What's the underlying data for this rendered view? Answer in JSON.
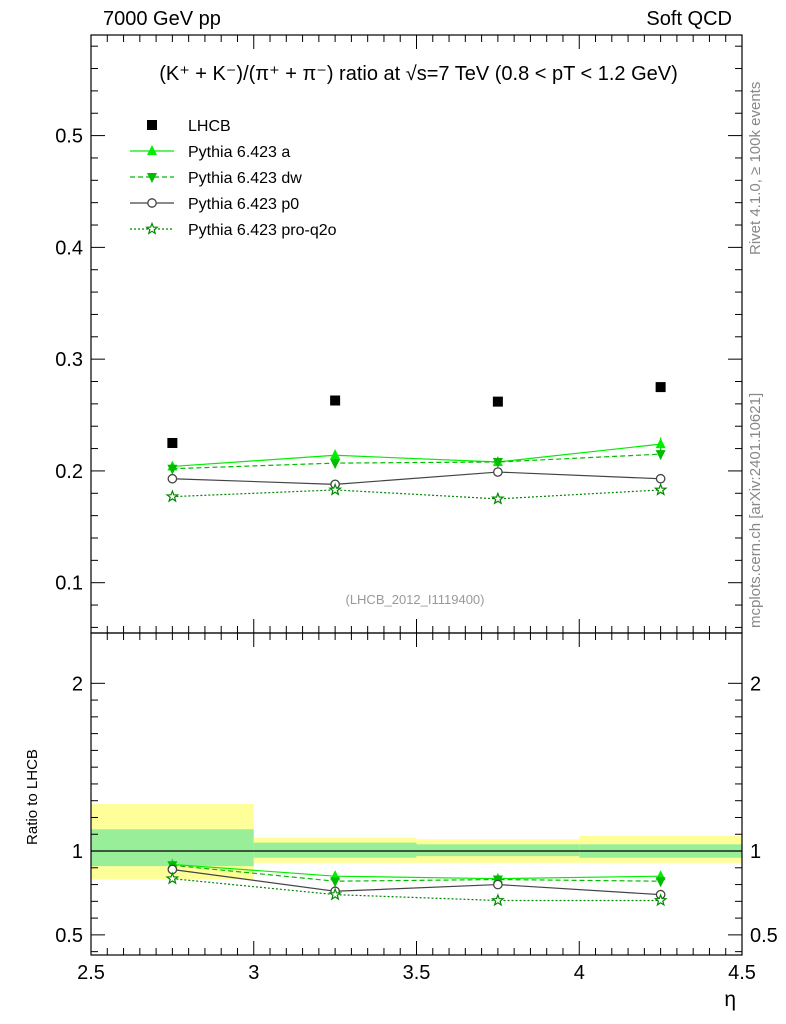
{
  "header": {
    "left": "7000 GeV pp",
    "right": "Soft QCD"
  },
  "side_labels": {
    "rivet": "Rivet 4.1.0, ≥ 100k events",
    "mcplots": "mcplots.cern.ch [arXiv:2401.10621]"
  },
  "chart_data": [
    {
      "type": "scatter",
      "panel": "main",
      "title": "(K⁺ + K⁻)/(π⁺ + π⁻) ratio at √s=7 TeV (0.8 < pT < 1.2 GeV)",
      "watermark": "(LHCB_2012_I1119400)",
      "xlabel": "",
      "ylabel": "",
      "xlim": [
        2.5,
        4.5
      ],
      "ylim": [
        0.055,
        0.59
      ],
      "yticks": [
        "0.1",
        "0.2",
        "0.3",
        "0.4",
        "0.5"
      ],
      "x": [
        2.75,
        3.25,
        3.75,
        4.25
      ],
      "series": [
        {
          "name": "LHCB",
          "marker": "square",
          "color": "#000000",
          "values": [
            0.225,
            0.263,
            0.262,
            0.275
          ]
        },
        {
          "name": "Pythia 6.423 a",
          "marker": "triangle-up",
          "line": "solid",
          "color": "#00ee00",
          "values": [
            0.204,
            0.214,
            0.208,
            0.224
          ],
          "errors": [
            0.004,
            0.005,
            0.004,
            0.006
          ]
        },
        {
          "name": "Pythia 6.423 dw",
          "marker": "triangle-down",
          "line": "dashed",
          "color": "#00bb00",
          "values": [
            0.202,
            0.207,
            0.208,
            0.215
          ],
          "errors": [
            0.004,
            0.004,
            0.004,
            0.004
          ]
        },
        {
          "name": "Pythia 6.423 p0",
          "marker": "circle-open",
          "line": "solid",
          "color": "#444444",
          "values": [
            0.193,
            0.188,
            0.199,
            0.193
          ],
          "errors": [
            0.003,
            0.003,
            0.004,
            0.004
          ]
        },
        {
          "name": "Pythia 6.423 pro-q2o",
          "marker": "star-open",
          "line": "dotted",
          "color": "#008800",
          "values": [
            0.177,
            0.183,
            0.175,
            0.183
          ],
          "errors": [
            0.002,
            0.002,
            0.002,
            0.002
          ]
        }
      ]
    },
    {
      "type": "scatter",
      "panel": "ratio",
      "xlabel": "η",
      "ylabel": "Ratio to LHCB",
      "xlim": [
        2.5,
        4.5
      ],
      "ylim": [
        0.38,
        2.3
      ],
      "xticks": [
        "2.5",
        "3",
        "3.5",
        "4",
        "4.5"
      ],
      "yticks": [
        "0.5",
        "1",
        "2"
      ],
      "bins": [
        [
          2.5,
          3.0
        ],
        [
          3.0,
          3.5
        ],
        [
          3.5,
          4.0
        ],
        [
          4.0,
          4.5
        ]
      ],
      "band_inner": [
        [
          0.91,
          1.13
        ],
        [
          0.96,
          1.05
        ],
        [
          0.97,
          1.04
        ],
        [
          0.96,
          1.04
        ]
      ],
      "band_outer": [
        [
          0.83,
          1.28
        ],
        [
          0.93,
          1.08
        ],
        [
          0.93,
          1.07
        ],
        [
          0.93,
          1.09
        ]
      ],
      "x": [
        2.75,
        3.25,
        3.75,
        4.25
      ],
      "series": [
        {
          "name": "Pythia 6.423 a",
          "values": [
            0.92,
            0.85,
            0.835,
            0.85
          ],
          "errors": [
            0.02,
            0.02,
            0.02,
            0.025
          ]
        },
        {
          "name": "Pythia 6.423 dw",
          "values": [
            0.915,
            0.82,
            0.83,
            0.82
          ],
          "errors": [
            0.02,
            0.02,
            0.02,
            0.02
          ]
        },
        {
          "name": "Pythia 6.423 p0",
          "values": [
            0.89,
            0.76,
            0.8,
            0.74
          ],
          "errors": [
            0.015,
            0.015,
            0.015,
            0.015
          ]
        },
        {
          "name": "Pythia 6.423 pro-q2o",
          "values": [
            0.835,
            0.74,
            0.705,
            0.705
          ],
          "errors": [
            0.01,
            0.01,
            0.01,
            0.01
          ]
        }
      ]
    }
  ]
}
